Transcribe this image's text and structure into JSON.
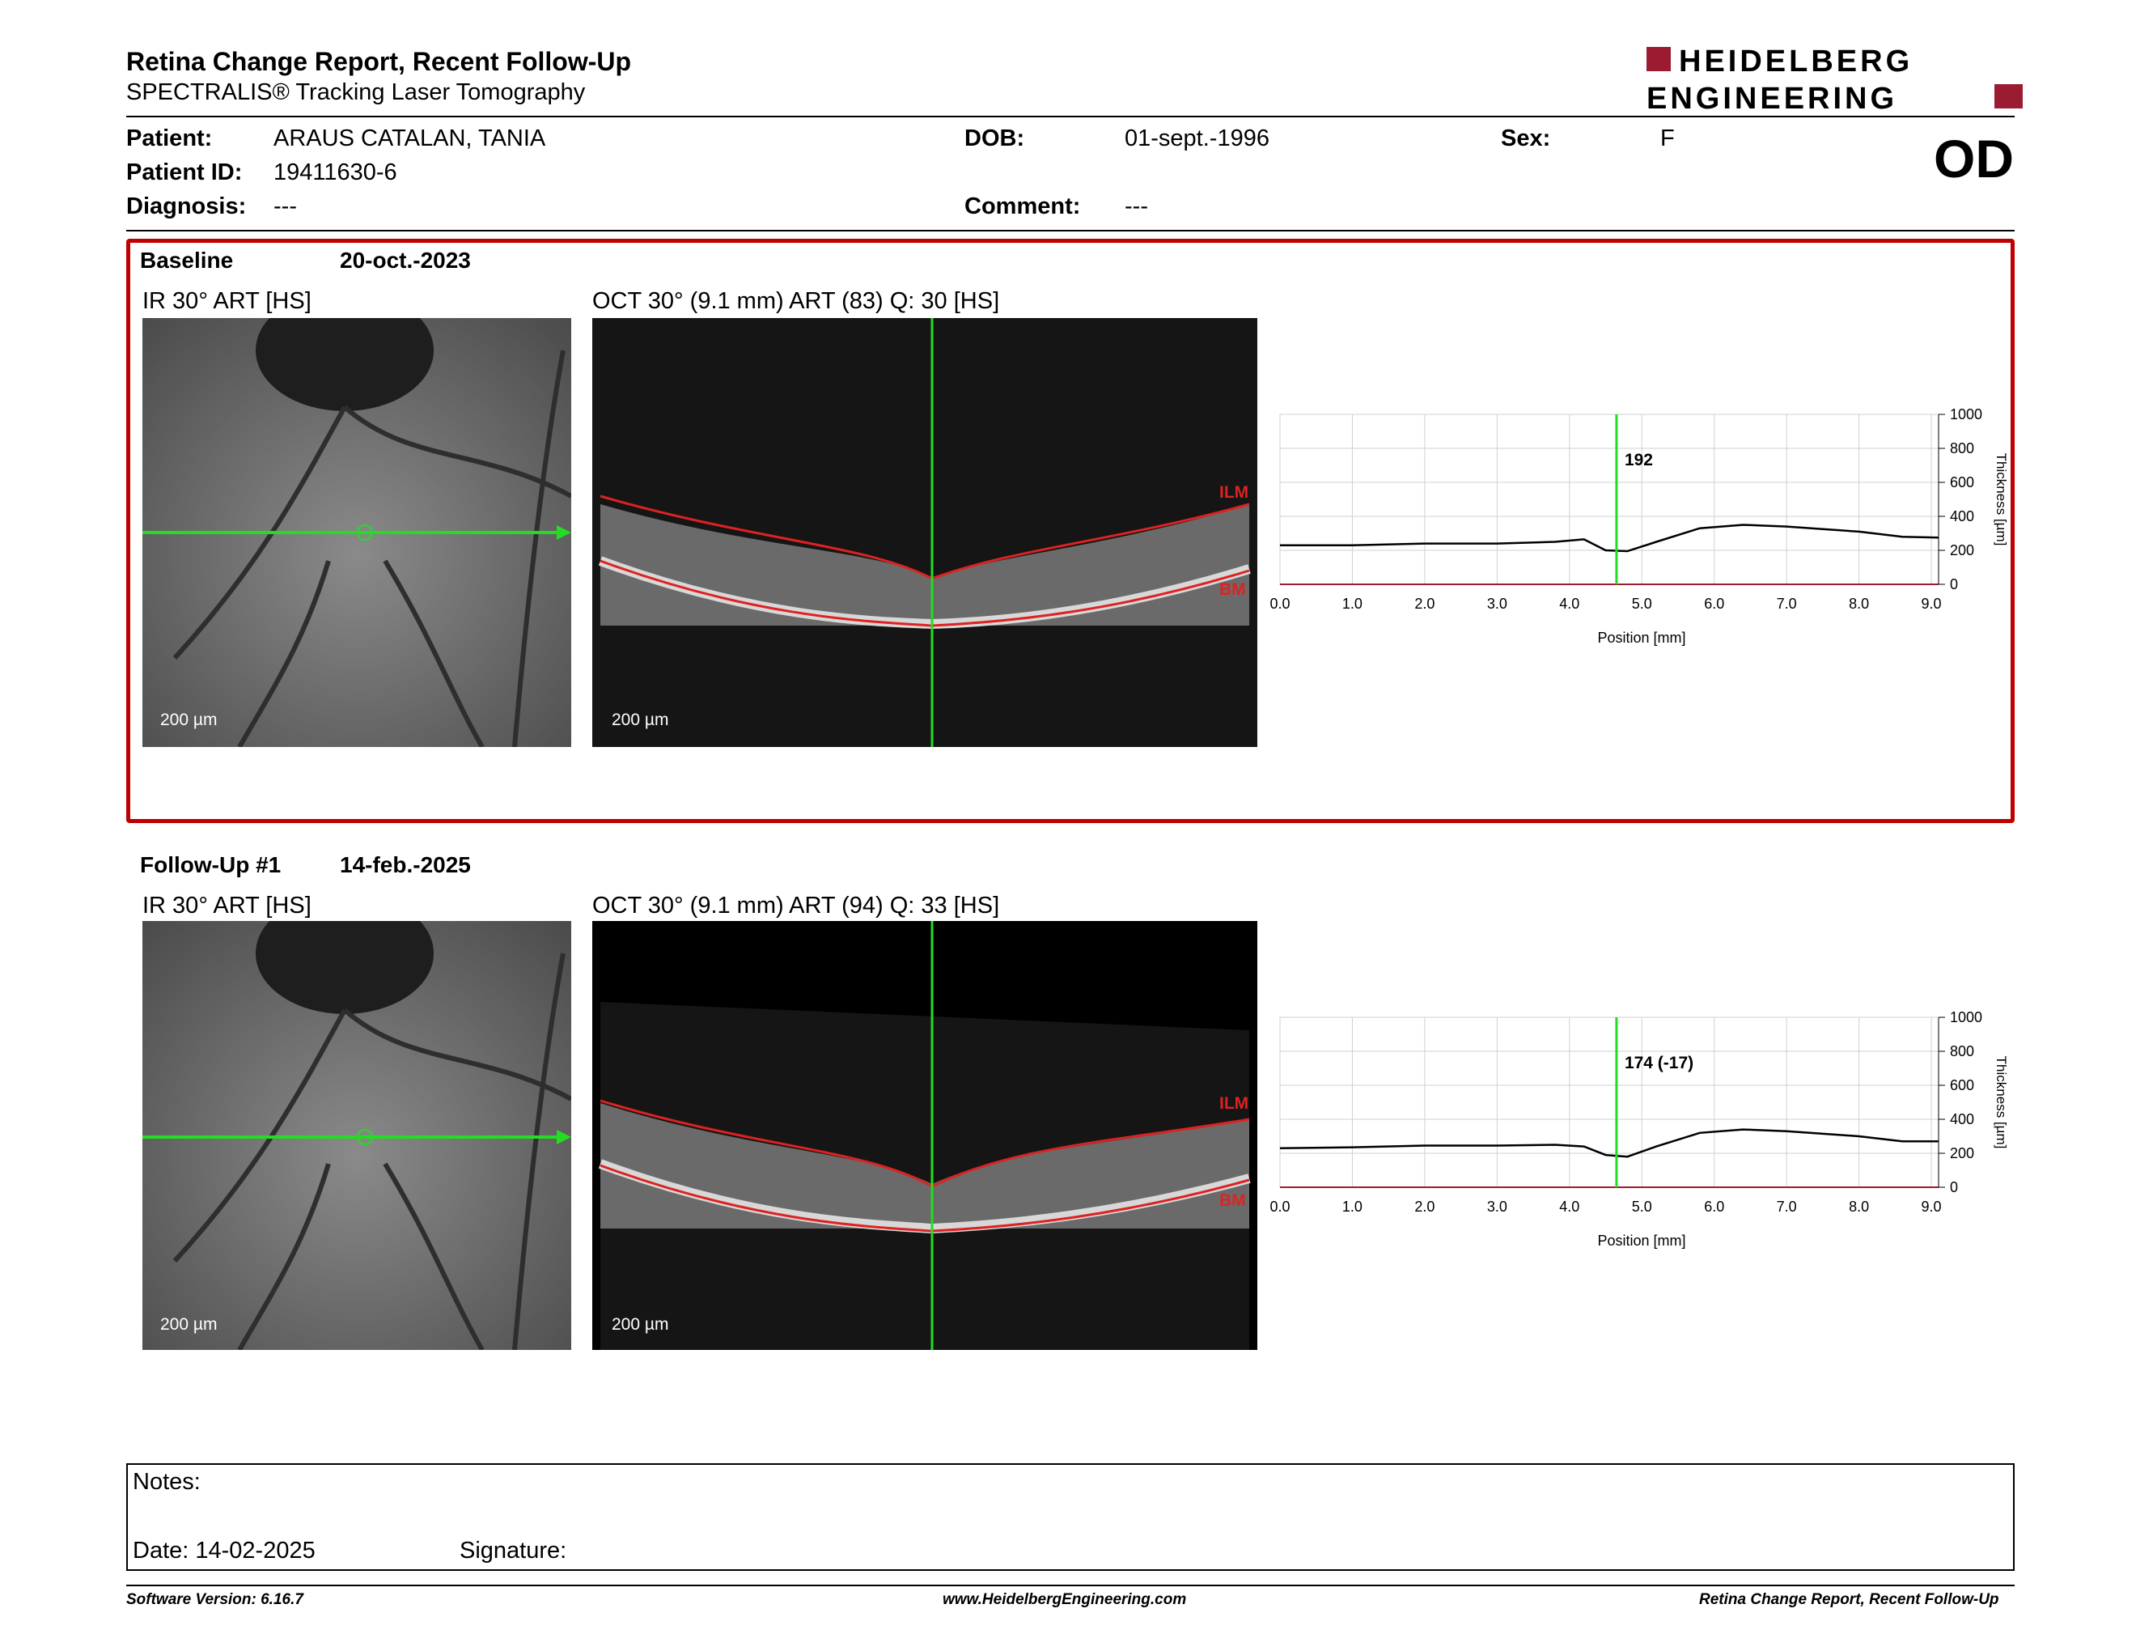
{
  "header": {
    "title": "Retina Change Report, Recent Follow-Up",
    "subtitle": "SPECTRALIS® Tracking Laser Tomography",
    "logo_line1": "HEIDELBERG",
    "logo_line2": "ENGINEERING",
    "brand_color": "#9b1b30"
  },
  "patient": {
    "patient_label": "Patient:",
    "patient_value": "ARAUS CATALAN, TANIA",
    "id_label": "Patient ID:",
    "id_value": "19411630-6",
    "diagnosis_label": "Diagnosis:",
    "diagnosis_value": "---",
    "dob_label": "DOB:",
    "dob_value": "01-sept.-1996",
    "comment_label": "Comment:",
    "comment_value": "---",
    "sex_label": "Sex:",
    "sex_value": "F",
    "eye": "OD"
  },
  "baseline": {
    "label": "Baseline",
    "date": "20-oct.-2023",
    "ir_caption": "IR 30° ART [HS]",
    "oct_caption": "OCT 30° (9.1 mm) ART (83) Q: 30 [HS]",
    "ir_scale": "200 µm",
    "oct_scale": "200 µm",
    "ilm": "ILM",
    "bm": "BM",
    "marker_value": "192"
  },
  "followup": {
    "label": "Follow-Up #1",
    "date": "14-feb.-2025",
    "ir_caption": "IR 30° ART [HS]",
    "oct_caption": "OCT 30° (9.1 mm) ART (94) Q: 33 [HS]",
    "ir_scale": "200 µm",
    "oct_scale": "200 µm",
    "ilm": "ILM",
    "bm": "BM",
    "marker_value": "174 (-17)"
  },
  "chart_data": [
    {
      "type": "line",
      "xlabel": "Position [mm]",
      "ylabel": "Thickness [µm]",
      "xlim": [
        0,
        9.1
      ],
      "ylim": [
        0,
        1000
      ],
      "xticks": [
        "0.0",
        "1.0",
        "2.0",
        "3.0",
        "4.0",
        "5.0",
        "6.0",
        "7.0",
        "8.0",
        "9.0"
      ],
      "yticks": [
        "0",
        "200",
        "400",
        "600",
        "800",
        "1000"
      ],
      "marker_x": 4.65,
      "marker_label": "192",
      "series": [
        {
          "x": [
            0,
            1,
            2,
            3,
            3.8,
            4.2,
            4.5,
            4.8,
            5.2,
            5.8,
            6.4,
            7.0,
            8.0,
            8.6,
            9.1
          ],
          "values": [
            230,
            230,
            240,
            240,
            250,
            265,
            200,
            195,
            250,
            330,
            350,
            340,
            310,
            280,
            275
          ]
        }
      ]
    },
    {
      "type": "line",
      "xlabel": "Position [mm]",
      "ylabel": "Thickness [µm]",
      "xlim": [
        0,
        9.1
      ],
      "ylim": [
        0,
        1000
      ],
      "xticks": [
        "0.0",
        "1.0",
        "2.0",
        "3.0",
        "4.0",
        "5.0",
        "6.0",
        "7.0",
        "8.0",
        "9.0"
      ],
      "yticks": [
        "0",
        "200",
        "400",
        "600",
        "800",
        "1000"
      ],
      "marker_x": 4.65,
      "marker_label": "174 (-17)",
      "series": [
        {
          "x": [
            0,
            1,
            2,
            3,
            3.8,
            4.2,
            4.5,
            4.8,
            5.2,
            5.8,
            6.4,
            7.0,
            8.0,
            8.6,
            9.1
          ],
          "values": [
            230,
            235,
            245,
            245,
            250,
            240,
            190,
            180,
            240,
            320,
            340,
            330,
            300,
            270,
            270
          ]
        }
      ]
    }
  ],
  "notes": {
    "notes_label": "Notes:",
    "date_text": "Date: 14-02-2025",
    "signature_label": "Signature:"
  },
  "footer": {
    "version": "Software Version: 6.16.7",
    "website": "www.HeidelbergEngineering.com",
    "report_name": "Retina Change Report, Recent Follow-Up"
  }
}
